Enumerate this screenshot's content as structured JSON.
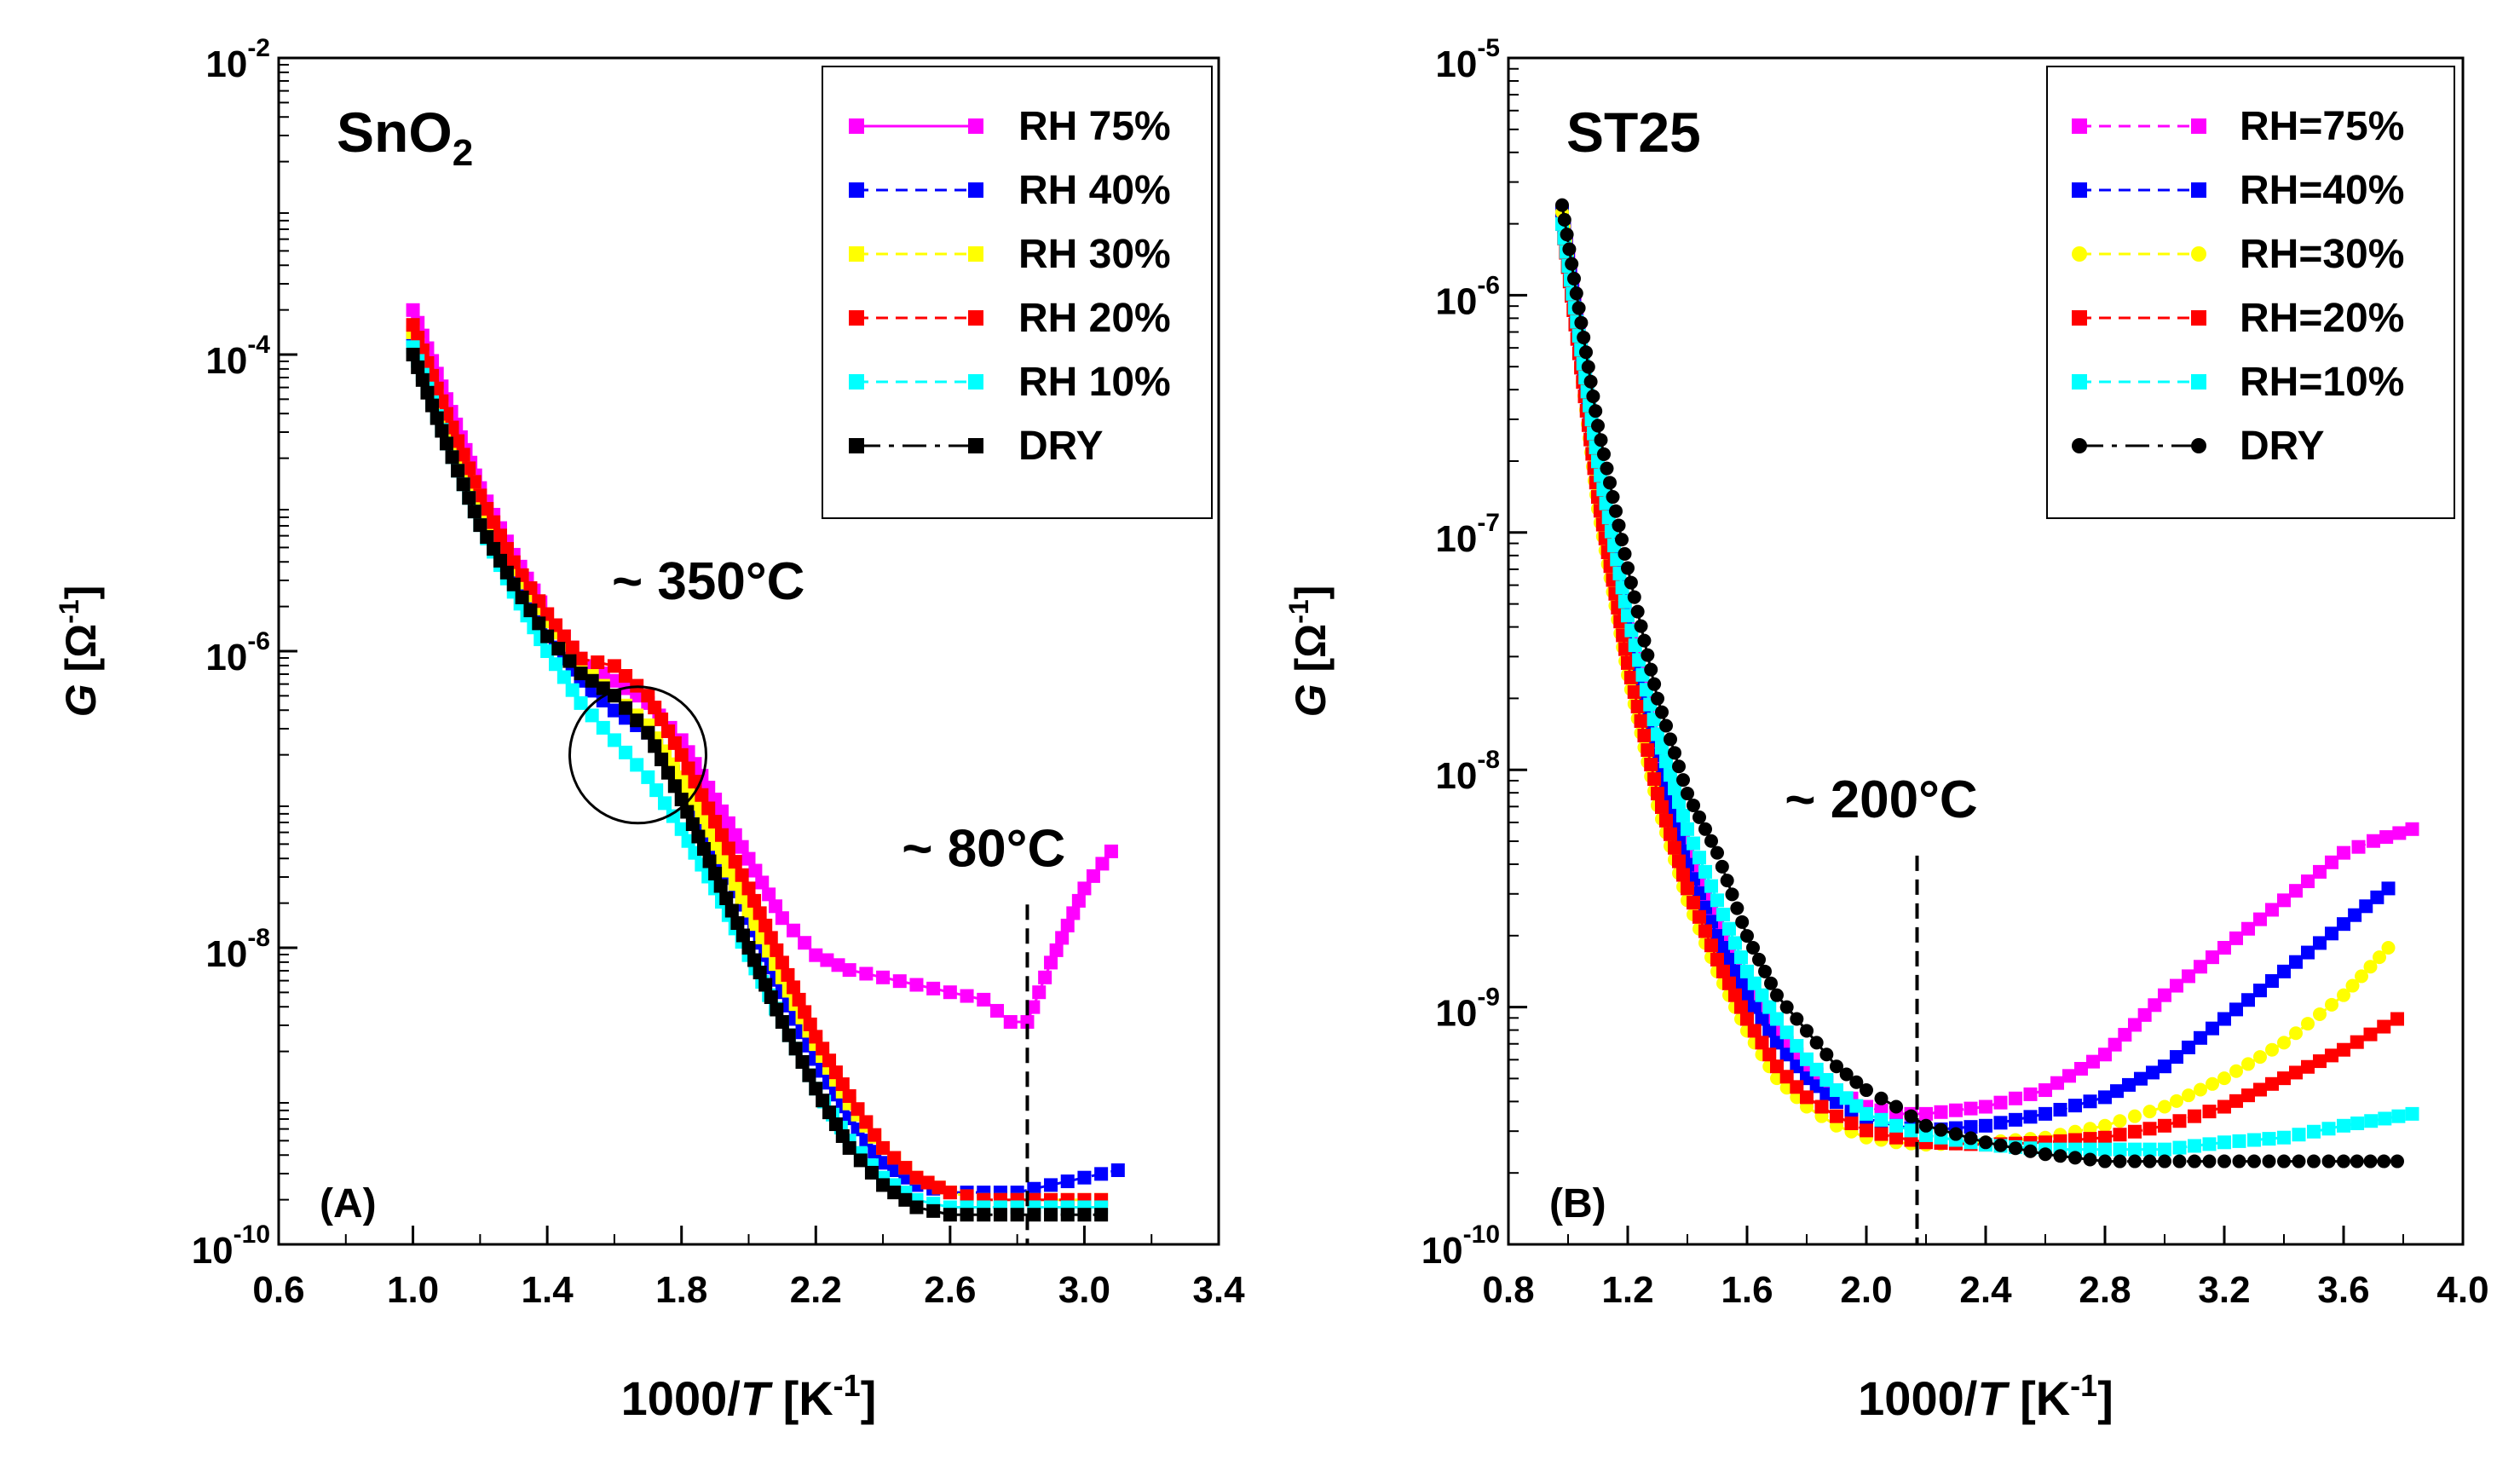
{
  "chart_data": [
    {
      "type": "scatter",
      "panel_label": "(A)",
      "title": "SnO",
      "title_sub": "2",
      "xlabel_prefix": "1000/",
      "xlabel_var": "T",
      "xlabel_unit": " [K",
      "xlabel_unit_sup": "-1",
      "xlabel_close": "]",
      "ylabel_var": "G",
      "ylabel_unit": " [Ω",
      "ylabel_sup": "-1",
      "ylabel_close": "]",
      "xlim": [
        0.6,
        3.4
      ],
      "ylim_log10": [
        -10,
        -2
      ],
      "x_ticks": [
        "0.6",
        "1.0",
        "1.4",
        "1.8",
        "2.2",
        "2.6",
        "3.0",
        "3.4"
      ],
      "y_tick_exponents": [
        "-10",
        "-8",
        "-6",
        "-4",
        "-2"
      ],
      "annotations": [
        {
          "text": "~ 350°C",
          "x": 1.88,
          "logy": -5.65
        },
        {
          "text": "~ 80°C",
          "x": 2.7,
          "logy": -7.45
        }
      ],
      "circle": {
        "x": 1.67,
        "logy": -6.7,
        "label": "transition region"
      },
      "vline_x": 2.83,
      "legend": [
        "RH 75%",
        "RH 40%",
        "RH 30%",
        "RH 20%",
        "RH 10%",
        "DRY"
      ],
      "series": [
        {
          "name": "RH 75%",
          "color": "#ff00ff",
          "marker": "square",
          "dash": "solid",
          "x": [
            1.0,
            1.1,
            1.2,
            1.3,
            1.4,
            1.5,
            1.6,
            1.7,
            1.8,
            1.9,
            2.0,
            2.1,
            2.2,
            2.3,
            2.4,
            2.5,
            2.6,
            2.7,
            2.78,
            2.83,
            2.9,
            3.0,
            3.08
          ],
          "logy": [
            -3.7,
            -4.3,
            -4.9,
            -5.35,
            -5.75,
            -6.05,
            -6.2,
            -6.35,
            -6.6,
            -7.0,
            -7.4,
            -7.8,
            -8.05,
            -8.15,
            -8.2,
            -8.25,
            -8.3,
            -8.35,
            -8.5,
            -8.5,
            -8.1,
            -7.6,
            -7.35
          ]
        },
        {
          "name": "RH 40%",
          "color": "#0000ff",
          "marker": "square",
          "dash": "dashed",
          "x": [
            1.0,
            1.1,
            1.2,
            1.3,
            1.4,
            1.5,
            1.6,
            1.7,
            1.8,
            1.9,
            2.0,
            2.1,
            2.2,
            2.3,
            2.4,
            2.5,
            2.6,
            2.7,
            2.8,
            2.9,
            3.0,
            3.1
          ],
          "logy": [
            -3.9,
            -4.5,
            -5.05,
            -5.5,
            -5.9,
            -6.2,
            -6.4,
            -6.55,
            -6.9,
            -7.35,
            -7.8,
            -8.3,
            -8.75,
            -9.15,
            -9.45,
            -9.6,
            -9.65,
            -9.65,
            -9.65,
            -9.6,
            -9.55,
            -9.5
          ]
        },
        {
          "name": "RH 30%",
          "color": "#ffff00",
          "marker": "square",
          "dash": "dashed",
          "x": [
            1.0,
            1.1,
            1.2,
            1.3,
            1.4,
            1.5,
            1.6,
            1.7,
            1.8,
            1.9,
            2.0,
            2.1,
            2.2,
            2.3,
            2.4,
            2.5,
            2.6,
            2.7,
            2.8,
            2.9,
            3.0,
            3.05
          ],
          "logy": [
            -3.85,
            -4.45,
            -5.0,
            -5.45,
            -5.8,
            -6.1,
            -6.3,
            -6.5,
            -6.85,
            -7.3,
            -7.75,
            -8.2,
            -8.65,
            -9.05,
            -9.35,
            -9.55,
            -9.65,
            -9.7,
            -9.7,
            -9.7,
            -9.7,
            -9.7
          ]
        },
        {
          "name": "RH 20%",
          "color": "#ff0000",
          "marker": "square",
          "dash": "dashed",
          "x": [
            1.0,
            1.1,
            1.2,
            1.3,
            1.4,
            1.5,
            1.6,
            1.7,
            1.8,
            1.9,
            2.0,
            2.1,
            2.2,
            2.3,
            2.4,
            2.5,
            2.6,
            2.7,
            2.8,
            2.9,
            3.0,
            3.05
          ],
          "logy": [
            -3.8,
            -4.4,
            -4.95,
            -5.4,
            -5.75,
            -6.05,
            -6.1,
            -6.3,
            -6.7,
            -7.15,
            -7.6,
            -8.1,
            -8.6,
            -9.0,
            -9.35,
            -9.55,
            -9.65,
            -9.7,
            -9.7,
            -9.7,
            -9.7,
            -9.7
          ]
        },
        {
          "name": "RH 10%",
          "color": "#00ffff",
          "marker": "square",
          "dash": "dashed",
          "x": [
            1.0,
            1.1,
            1.2,
            1.3,
            1.4,
            1.5,
            1.6,
            1.7,
            1.8,
            1.9,
            2.0,
            2.1,
            2.2,
            2.3,
            2.4,
            2.5,
            2.6,
            2.7,
            2.8,
            2.9,
            3.0,
            3.05
          ],
          "logy": [
            -3.95,
            -4.6,
            -5.15,
            -5.6,
            -6.0,
            -6.35,
            -6.6,
            -6.85,
            -7.2,
            -7.6,
            -8.05,
            -8.5,
            -8.95,
            -9.3,
            -9.55,
            -9.7,
            -9.75,
            -9.75,
            -9.75,
            -9.75,
            -9.75,
            -9.75
          ]
        },
        {
          "name": "DRY",
          "color": "#000000",
          "marker": "square",
          "dash": "longdash",
          "x": [
            1.0,
            1.1,
            1.2,
            1.3,
            1.4,
            1.5,
            1.6,
            1.7,
            1.8,
            1.9,
            2.0,
            2.1,
            2.2,
            2.3,
            2.4,
            2.5,
            2.6,
            2.7,
            2.8,
            2.9,
            3.0,
            3.05
          ],
          "logy": [
            -4.0,
            -4.6,
            -5.15,
            -5.55,
            -5.9,
            -6.15,
            -6.3,
            -6.55,
            -7.0,
            -7.5,
            -8.0,
            -8.5,
            -8.95,
            -9.35,
            -9.6,
            -9.75,
            -9.8,
            -9.8,
            -9.8,
            -9.8,
            -9.8,
            -9.8
          ]
        }
      ]
    },
    {
      "type": "scatter",
      "panel_label": "(B)",
      "title": "ST25",
      "title_sub": "",
      "xlabel_prefix": "1000/",
      "xlabel_var": "T",
      "xlabel_unit": " [K",
      "xlabel_unit_sup": "-1",
      "xlabel_close": "]",
      "ylabel_var": "G",
      "ylabel_unit": " [Ω",
      "ylabel_sup": "-1",
      "ylabel_close": "]",
      "xlim": [
        0.8,
        4.0
      ],
      "ylim_log10": [
        -10,
        -5
      ],
      "x_ticks": [
        "0.8",
        "1.2",
        "1.6",
        "2.0",
        "2.4",
        "2.8",
        "3.2",
        "3.6",
        "4.0"
      ],
      "y_tick_exponents": [
        "-10",
        "-9",
        "-8",
        "-7",
        "-6",
        "-5"
      ],
      "annotations": [
        {
          "text": "~ 200°C",
          "x": 2.05,
          "logy": -8.2
        }
      ],
      "circle": null,
      "vline_x": 2.17,
      "legend": [
        "RH=75%",
        "RH=40%",
        "RH=30%",
        "RH=20%",
        "RH=10%",
        "DRY"
      ],
      "series": [
        {
          "name": "RH=75%",
          "color": "#ff00ff",
          "marker": "square",
          "dash": "dashed",
          "x": [
            0.98,
            1.1,
            1.2,
            1.3,
            1.4,
            1.5,
            1.6,
            1.7,
            1.8,
            1.9,
            2.0,
            2.1,
            2.2,
            2.4,
            2.6,
            2.8,
            3.0,
            3.2,
            3.4,
            3.6,
            3.7,
            3.83
          ],
          "logy": [
            -5.65,
            -6.7,
            -7.4,
            -7.95,
            -8.35,
            -8.65,
            -8.9,
            -9.1,
            -9.25,
            -9.35,
            -9.42,
            -9.45,
            -9.45,
            -9.42,
            -9.35,
            -9.2,
            -8.95,
            -8.75,
            -8.55,
            -8.35,
            -8.3,
            -8.25
          ]
        },
        {
          "name": "RH=40%",
          "color": "#0000ff",
          "marker": "square",
          "dash": "dashed",
          "x": [
            0.98,
            1.1,
            1.2,
            1.3,
            1.4,
            1.5,
            1.6,
            1.7,
            1.8,
            1.9,
            2.0,
            2.1,
            2.2,
            2.4,
            2.6,
            2.8,
            3.0,
            3.2,
            3.4,
            3.6,
            3.75
          ],
          "logy": [
            -5.65,
            -6.75,
            -7.45,
            -8.0,
            -8.4,
            -8.7,
            -8.95,
            -9.15,
            -9.3,
            -9.4,
            -9.47,
            -9.5,
            -9.52,
            -9.5,
            -9.45,
            -9.38,
            -9.25,
            -9.05,
            -8.85,
            -8.65,
            -8.5
          ]
        },
        {
          "name": "RH=30%",
          "color": "#ffff00",
          "marker": "circle",
          "dash": "dashed",
          "x": [
            0.98,
            1.1,
            1.2,
            1.3,
            1.4,
            1.5,
            1.6,
            1.7,
            1.8,
            1.9,
            2.0,
            2.1,
            2.2,
            2.4,
            2.6,
            2.8,
            3.0,
            3.2,
            3.4,
            3.6,
            3.75
          ],
          "logy": [
            -5.65,
            -6.9,
            -7.6,
            -8.15,
            -8.55,
            -8.85,
            -9.1,
            -9.3,
            -9.42,
            -9.5,
            -9.55,
            -9.57,
            -9.58,
            -9.57,
            -9.55,
            -9.5,
            -9.42,
            -9.3,
            -9.15,
            -8.95,
            -8.75
          ]
        },
        {
          "name": "RH=20%",
          "color": "#ff0000",
          "marker": "square",
          "dash": "dashed",
          "x": [
            0.98,
            1.1,
            1.2,
            1.3,
            1.4,
            1.5,
            1.6,
            1.7,
            1.8,
            1.9,
            2.0,
            2.1,
            2.2,
            2.4,
            2.6,
            2.8,
            3.0,
            3.2,
            3.4,
            3.6,
            3.78
          ],
          "logy": [
            -5.7,
            -6.85,
            -7.55,
            -8.1,
            -8.5,
            -8.8,
            -9.05,
            -9.25,
            -9.38,
            -9.46,
            -9.52,
            -9.55,
            -9.57,
            -9.58,
            -9.57,
            -9.55,
            -9.5,
            -9.42,
            -9.3,
            -9.18,
            -9.05
          ]
        },
        {
          "name": "RH=10%",
          "color": "#00ffff",
          "marker": "square",
          "dash": "dashed",
          "x": [
            0.98,
            1.1,
            1.2,
            1.3,
            1.4,
            1.5,
            1.6,
            1.7,
            1.8,
            1.9,
            2.0,
            2.1,
            2.2,
            2.4,
            2.6,
            2.8,
            3.0,
            3.2,
            3.4,
            3.6,
            3.83
          ],
          "logy": [
            -5.7,
            -6.7,
            -7.35,
            -7.85,
            -8.25,
            -8.55,
            -8.85,
            -9.05,
            -9.22,
            -9.35,
            -9.45,
            -9.5,
            -9.54,
            -9.58,
            -9.6,
            -9.6,
            -9.6,
            -9.57,
            -9.55,
            -9.5,
            -9.45
          ]
        },
        {
          "name": "DRY",
          "color": "#000000",
          "marker": "circle",
          "dash": "longdash",
          "x": [
            0.98,
            1.1,
            1.2,
            1.3,
            1.4,
            1.5,
            1.6,
            1.7,
            1.8,
            1.9,
            2.0,
            2.1,
            2.2,
            2.4,
            2.6,
            2.8,
            3.0,
            3.2,
            3.4,
            3.6,
            3.78
          ],
          "logy": [
            -5.62,
            -6.55,
            -7.15,
            -7.7,
            -8.1,
            -8.35,
            -8.7,
            -8.95,
            -9.1,
            -9.25,
            -9.35,
            -9.42,
            -9.5,
            -9.57,
            -9.62,
            -9.65,
            -9.65,
            -9.65,
            -9.65,
            -9.65,
            -9.65
          ]
        }
      ]
    }
  ]
}
